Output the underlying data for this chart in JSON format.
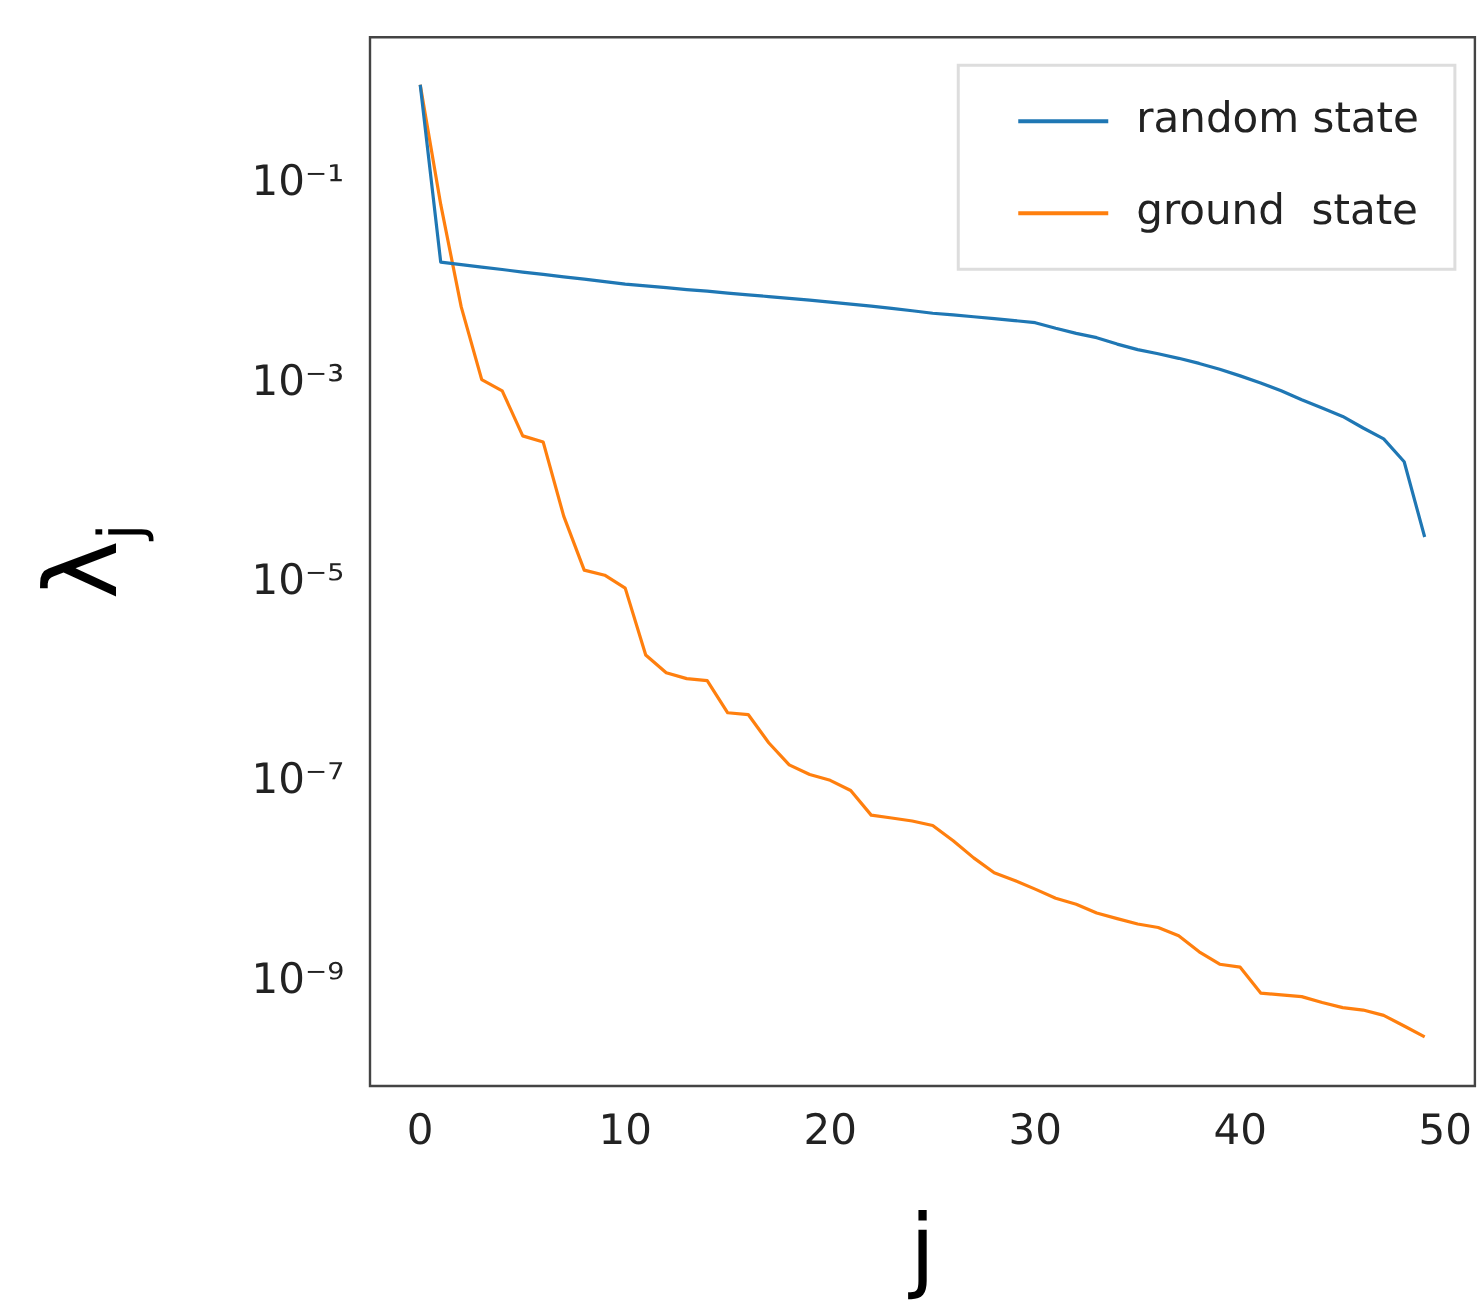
{
  "chart_data": {
    "type": "line",
    "xlabel": "j",
    "ylabel": "λ$_{j}$",
    "x": [
      0,
      1,
      2,
      3,
      4,
      5,
      6,
      7,
      8,
      9,
      10,
      11,
      12,
      13,
      14,
      15,
      16,
      17,
      18,
      19,
      20,
      21,
      22,
      23,
      24,
      25,
      26,
      27,
      28,
      29,
      30,
      31,
      32,
      33,
      34,
      35,
      36,
      37,
      38,
      39,
      40,
      41,
      42,
      43,
      44,
      45,
      46,
      47,
      48,
      49
    ],
    "series": [
      {
        "name": "random state",
        "color": "#1f77b4",
        "values": [
          1.0,
          0.0166,
          0.0157,
          0.0148,
          0.014,
          0.0132,
          0.0125,
          0.0118,
          0.0112,
          0.0106,
          0.01,
          0.0096,
          0.0092,
          0.0088,
          0.0085,
          0.0081,
          0.0078,
          0.0075,
          0.0072,
          0.0069,
          0.0066,
          0.0063,
          0.006,
          0.0057,
          0.0054,
          0.0051,
          0.0049,
          0.0047,
          0.0045,
          0.0043,
          0.0041,
          0.0036,
          0.0032,
          0.0029,
          0.0025,
          0.0022,
          0.002,
          0.0018,
          0.0016,
          0.0014,
          0.0012,
          0.00102,
          0.00085,
          0.00069,
          0.00057,
          0.00047,
          0.00036,
          0.00028,
          0.000165,
          2.9e-05
        ]
      },
      {
        "name": "ground  state",
        "color": "#ff7f0e",
        "values": [
          1.0,
          0.063,
          0.0059,
          0.0011,
          0.00085,
          0.0003,
          0.00026,
          4.7e-05,
          1.35e-05,
          1.2e-05,
          8.9e-06,
          1.9e-06,
          1.26e-06,
          1.1e-06,
          1.05e-06,
          5e-07,
          4.8e-07,
          2.5e-07,
          1.5e-07,
          1.2e-07,
          1.05e-07,
          8.3e-08,
          4.7e-08,
          4.4e-08,
          4.1e-08,
          3.7e-08,
          2.6e-08,
          1.75e-08,
          1.24e-08,
          1.04e-08,
          8.5e-09,
          6.9e-09,
          6e-09,
          4.9e-09,
          4.3e-09,
          3.8e-09,
          3.5e-09,
          2.9e-09,
          2e-09,
          1.5e-09,
          1.4e-09,
          7.7e-10,
          7.4e-10,
          7.1e-10,
          6.2e-10,
          5.5e-10,
          5.2e-10,
          4.6e-10,
          3.6e-10,
          2.8e-10
        ]
      }
    ],
    "log": "y",
    "xlim": [
      -2.45,
      51.45
    ],
    "xticks": [
      0,
      10,
      20,
      30,
      40,
      50
    ],
    "ylim": [
      9e-11,
      3
    ],
    "yticks": [
      {
        "value": 0.1,
        "label": "10⁻¹"
      },
      {
        "value": 0.001,
        "label": "10⁻³"
      },
      {
        "value": 1e-05,
        "label": "10⁻⁵"
      },
      {
        "value": 1e-07,
        "label": "10⁻⁷"
      },
      {
        "value": 1e-09,
        "label": "10⁻⁹"
      }
    ],
    "grid": false,
    "legend": "top right",
    "marker": "none",
    "line_style": "solid"
  }
}
